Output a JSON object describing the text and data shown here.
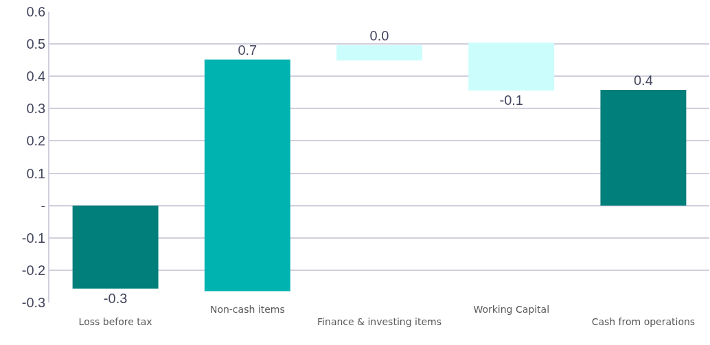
{
  "chart_data": {
    "type": "bar",
    "categories": [
      "Loss before tax",
      "Non-cash items",
      "Finance & investing items",
      "Working Capital",
      "Cash from operations"
    ],
    "values": [
      -0.257,
      0.717,
      0.047,
      -0.148,
      0.358
    ],
    "base": [
      0,
      -0.265,
      0.449,
      0.504,
      0
    ],
    "colors": [
      "#007f7b",
      "#00b3b1",
      "#ccfdfd",
      "#ccfdfd",
      "#007f7b"
    ],
    "value_labels": [
      "-0.3",
      "0.7",
      "0.0",
      "-0.1",
      "0.4"
    ],
    "ylim": [
      -0.3,
      0.6
    ],
    "yticks": [
      -0.3,
      -0.2,
      -0.1,
      {
        "value": 0,
        "label": "-"
      },
      0.1,
      0.2,
      0.3,
      0.4,
      0.5,
      0.6
    ],
    "grid": "y"
  }
}
